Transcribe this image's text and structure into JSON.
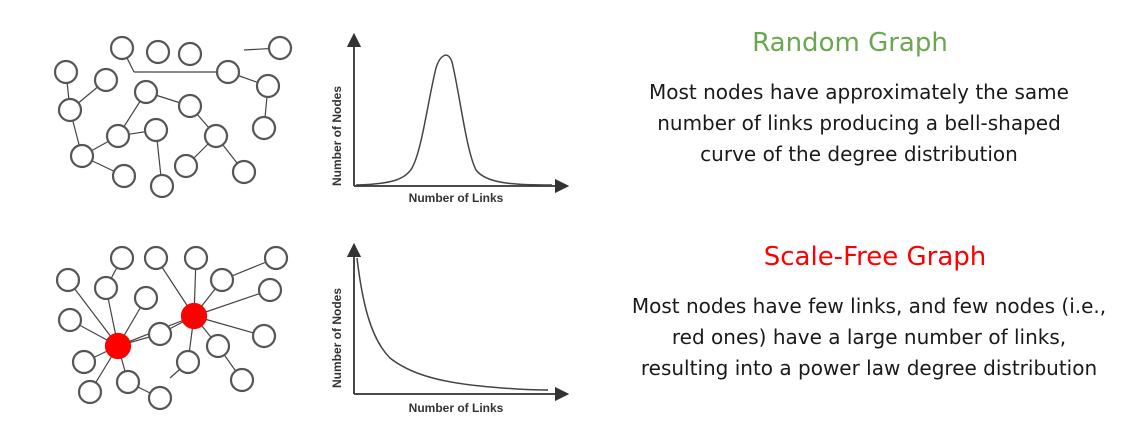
{
  "random": {
    "title": "Random Graph",
    "title_color": "#6aa84f",
    "description": [
      "Most nodes have approximately the same",
      "number of links producing a bell-shaped",
      "curve of the degree distribution"
    ],
    "plot": {
      "ylabel": "Number of Nodes",
      "xlabel": "Number of Links",
      "curve": "bell-shaped"
    }
  },
  "scale_free": {
    "title": "Scale-Free Graph",
    "title_color": "#ff0000",
    "description": [
      "Most nodes have few links, and few nodes (i.e.,",
      "red ones) have a large number of links,",
      "resulting into a power law degree distribution"
    ],
    "plot": {
      "ylabel": "Number of Nodes",
      "xlabel": "Number of Links",
      "curve": "power-law"
    },
    "hub_color": "#ff0000"
  }
}
